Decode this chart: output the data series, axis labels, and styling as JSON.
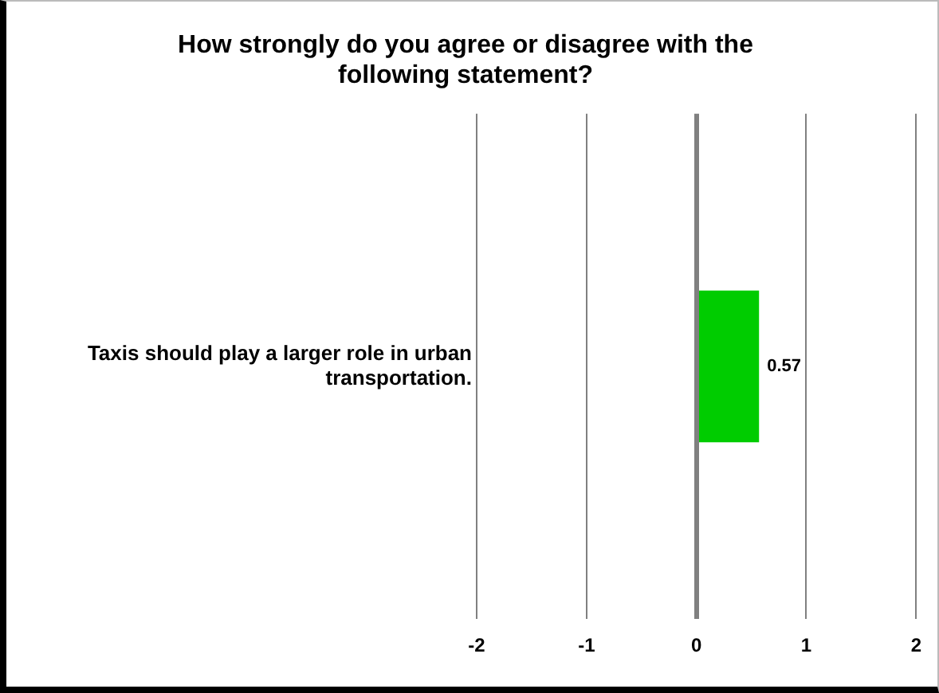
{
  "chart_data": {
    "type": "bar",
    "orientation": "horizontal",
    "title": "How strongly do you agree or disagree with the following statement?",
    "categories": [
      "Taxis should play a larger role in urban transportation."
    ],
    "values": [
      0.57
    ],
    "color": "#00cc00",
    "xlim": [
      -2,
      2
    ],
    "xticks": [
      -2,
      -1,
      0,
      1,
      2
    ],
    "grid": "x",
    "legend": false,
    "data_labels": true
  }
}
